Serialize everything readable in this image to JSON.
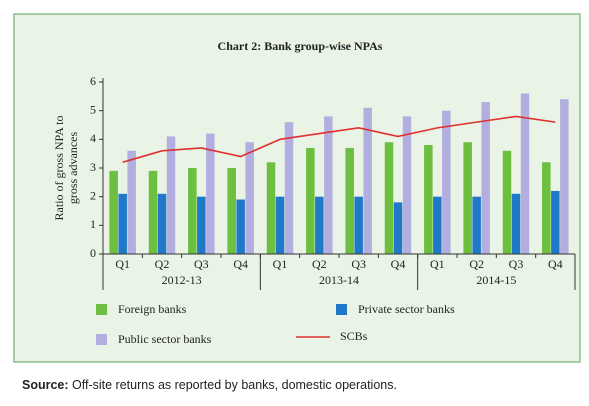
{
  "chart_data": {
    "type": "bar_line",
    "title": "Chart 2: Bank group-wise NPAs",
    "ylabel": [
      "Ratio of gross NPA to",
      "gross advances"
    ],
    "categories": [
      "Q1",
      "Q2",
      "Q3",
      "Q4",
      "Q1",
      "Q2",
      "Q3",
      "Q4",
      "Q1",
      "Q2",
      "Q3",
      "Q4"
    ],
    "groups": [
      "2012-13",
      "2013-14",
      "2014-15"
    ],
    "ylim": [
      0,
      6
    ],
    "yticks": [
      0,
      1,
      2,
      3,
      4,
      5,
      6
    ],
    "series": [
      {
        "name": "Foreign banks",
        "type": "bar",
        "color": "#6cbf3f",
        "values": [
          2.9,
          2.9,
          3.0,
          3.0,
          3.2,
          3.7,
          3.7,
          3.9,
          3.8,
          3.9,
          3.6,
          3.2
        ]
      },
      {
        "name": "Private sector banks",
        "type": "bar",
        "color": "#1f78c8",
        "values": [
          2.1,
          2.1,
          2.0,
          1.9,
          2.0,
          2.0,
          2.0,
          1.8,
          2.0,
          2.0,
          2.1,
          2.2
        ]
      },
      {
        "name": "Public sector banks",
        "type": "bar",
        "color": "#b3aee0",
        "values": [
          3.6,
          4.1,
          4.2,
          3.9,
          4.6,
          4.8,
          5.1,
          4.8,
          5.0,
          5.3,
          5.6,
          5.4
        ]
      },
      {
        "name": "SCBs",
        "type": "line",
        "color": "#e03030",
        "values": [
          3.2,
          3.6,
          3.7,
          3.4,
          4.0,
          4.2,
          4.4,
          4.1,
          4.4,
          4.6,
          4.8,
          4.6
        ]
      }
    ]
  },
  "source_label": "Source:",
  "source_text": "Off-site returns as reported by banks, domestic operations."
}
